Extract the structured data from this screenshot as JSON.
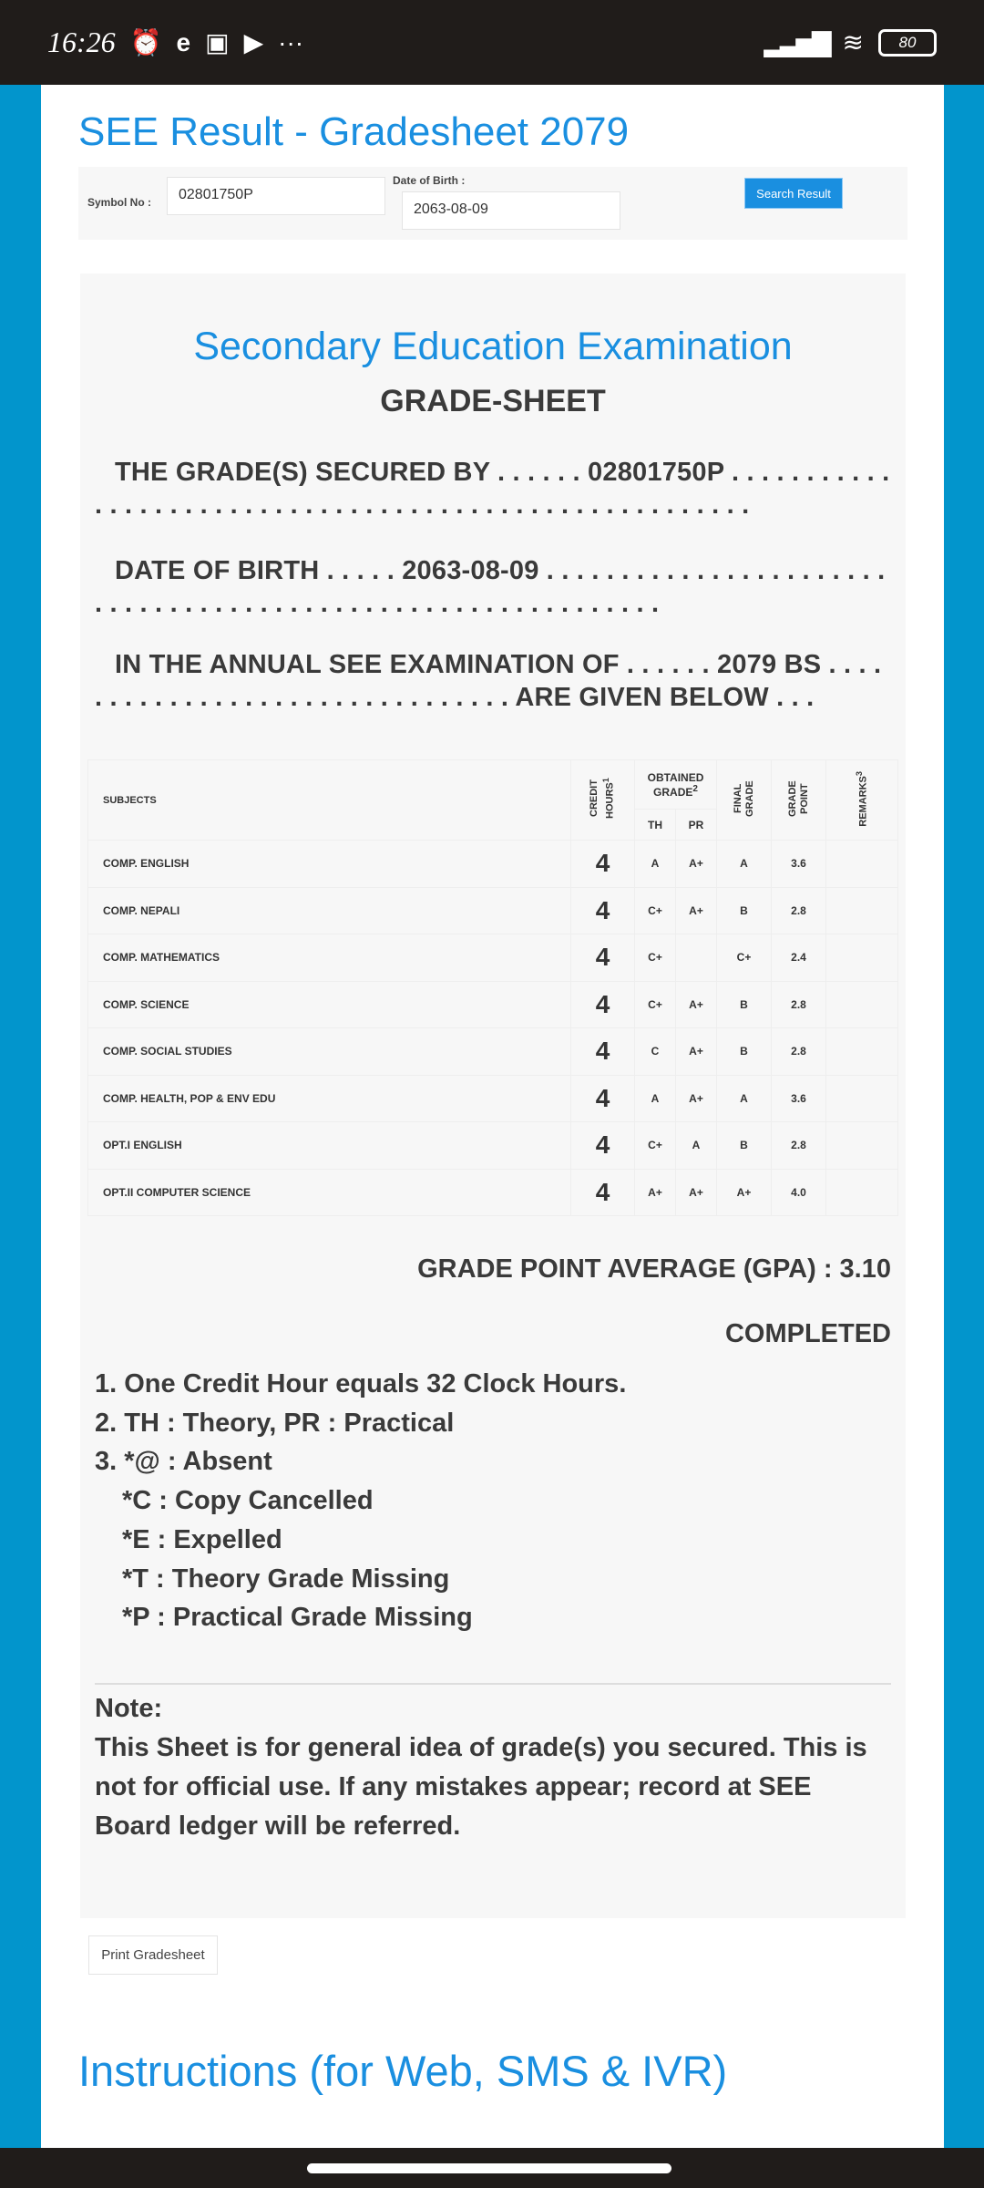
{
  "status_bar": {
    "time": "16:26",
    "battery": "80",
    "icons": [
      "alarm-icon",
      "browser-e-icon",
      "app-icon",
      "youtube-icon",
      "more-dots-icon",
      "signal-icon",
      "wifi-icon",
      "battery-icon"
    ]
  },
  "page_title": "SEE Result - Gradesheet 2079",
  "form": {
    "symbol_label": "Symbol No :",
    "symbol_value": "02801750P",
    "dob_label": "Date of Birth :",
    "dob_value": "2063-08-09",
    "search_label": "Search Result"
  },
  "sheet": {
    "exam_title": "Secondary Education Examination",
    "sheet_title": "GRADE-SHEET",
    "line1": "THE GRADE(S) SECURED BY . . . . . . 02801750P . . . . . . . . . . . . . . . . . . . . . . . . . . . . . . . . . . . . . . . . . . . . . . . . . . . . . . .",
    "line2": "DATE OF BIRTH . . . . . 2063-08-09 . . . . . . . . . . . . . . . . . . . . . . . . . . . . . . . . . . . . . . . . . . . . . . . . . . . . . . . . . . . . .",
    "line3": "IN THE ANNUAL SEE EXAMINATION OF . . . . . . 2079 BS . . . . . . . . . . . . . . . . . . . . . . . . . . . . . . . . ARE GIVEN BELOW . . .",
    "headers": {
      "subjects": "SUBJECTS",
      "credit": "CREDIT HOURS",
      "credit_sup": "1",
      "obtained": "OBTAINED GRADE",
      "obtained_sup": "2",
      "th": "TH",
      "pr": "PR",
      "final": "FINAL GRADE",
      "point": "GRADE POINT",
      "remarks": "REMARKS",
      "remarks_sup": "3"
    },
    "rows": [
      {
        "subject": "COMP. ENGLISH",
        "credit": "4",
        "th": "A",
        "pr": "A+",
        "final": "A",
        "point": "3.6",
        "remarks": ""
      },
      {
        "subject": "COMP. NEPALI",
        "credit": "4",
        "th": "C+",
        "pr": "A+",
        "final": "B",
        "point": "2.8",
        "remarks": ""
      },
      {
        "subject": "COMP. MATHEMATICS",
        "credit": "4",
        "th": "C+",
        "pr": "",
        "final": "C+",
        "point": "2.4",
        "remarks": ""
      },
      {
        "subject": "COMP. SCIENCE",
        "credit": "4",
        "th": "C+",
        "pr": "A+",
        "final": "B",
        "point": "2.8",
        "remarks": ""
      },
      {
        "subject": "COMP. SOCIAL STUDIES",
        "credit": "4",
        "th": "C",
        "pr": "A+",
        "final": "B",
        "point": "2.8",
        "remarks": ""
      },
      {
        "subject": "COMP. HEALTH, POP & ENV EDU",
        "credit": "4",
        "th": "A",
        "pr": "A+",
        "final": "A",
        "point": "3.6",
        "remarks": ""
      },
      {
        "subject": "OPT.I ENGLISH",
        "credit": "4",
        "th": "C+",
        "pr": "A",
        "final": "B",
        "point": "2.8",
        "remarks": ""
      },
      {
        "subject": "OPT.II COMPUTER SCIENCE",
        "credit": "4",
        "th": "A+",
        "pr": "A+",
        "final": "A+",
        "point": "4.0",
        "remarks": ""
      }
    ],
    "gpa": "GRADE POINT AVERAGE (GPA) : 3.10",
    "status": "COMPLETED",
    "footnotes": [
      "1. One Credit Hour equals 32 Clock Hours.",
      "2. TH : Theory, PR : Practical",
      "3. *@ : Absent",
      "*C : Copy Cancelled",
      "*E : Expelled",
      "*T : Theory Grade Missing",
      "*P : Practical Grade Missing"
    ],
    "note_title": "Note:",
    "note_text": "This Sheet is for general idea of grade(s) you secured. This is not for official use. If any mistakes appear; record at SEE Board ledger will be referred."
  },
  "print_label": "Print Gradesheet",
  "instructions_title": "Instructions (for Web, SMS & IVR)",
  "colors": {
    "accent": "#1a8fe0",
    "side": "#0295cc",
    "statusbar": "#201c1a"
  }
}
